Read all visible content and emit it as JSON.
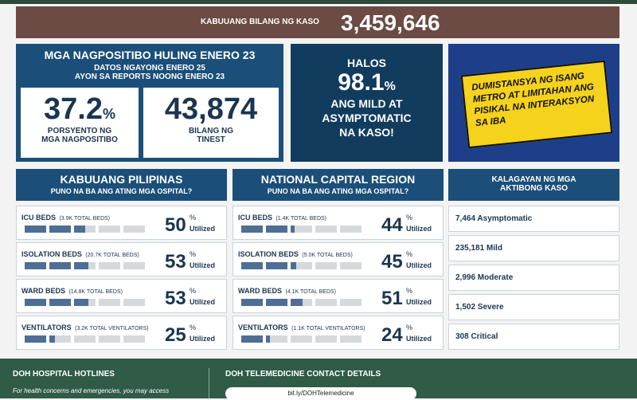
{
  "top_banner": {
    "label": "KABUUANG BILANG NG KASO",
    "value": "3,459,646"
  },
  "positivity": {
    "title": "MGA NAGPOSITIBO HULING ENERO 23",
    "subtitle_1": "DATOS NGAYONG ENERO 25",
    "subtitle_2": "AYON SA REPORTS NOONG ENERO 23",
    "rate": {
      "value": 37.2,
      "unit": "%",
      "label": "PORSYENTO NG MGA NAGPOSITIBO"
    },
    "tested": {
      "value": "43,874",
      "label": "BILANG NG TINEST"
    }
  },
  "mild": {
    "pre": "HALOS",
    "value": 98.1,
    "unit": "%",
    "text": "ANG MILD AT ASYMPTOMATIC NA KASO!"
  },
  "poster": {
    "text": "DUMISTANSYA NG ISANG METRO AT LIMITAHAN ANG PISIKAL NA INTERAKSYON SA IBA"
  },
  "unit": "%",
  "status": "Utilized",
  "regions": [
    {
      "title": "KABUUANG PILIPINAS",
      "subtitle": "PUNO NA BA ANG ATING MGA OSPITAL?",
      "rows": [
        {
          "label": "ICU BEDS",
          "note": "(3.9K TOTAL BEDS)",
          "percent": 50
        },
        {
          "label": "ISOLATION BEDS",
          "note": "(20.7K TOTAL BEDS)",
          "percent": 53
        },
        {
          "label": "WARD BEDS",
          "note": "(14.8K TOTAL BEDS)",
          "percent": 53
        },
        {
          "label": "VENTILATORS",
          "note": "(3.2K TOTAL VENTILATORS)",
          "percent": 25
        }
      ]
    },
    {
      "title": "NATIONAL CAPITAL REGION",
      "subtitle": "PUNO NA BA ANG ATING MGA OSPITAL?",
      "rows": [
        {
          "label": "ICU BEDS",
          "note": "(1.4K TOTAL BEDS)",
          "percent": 44
        },
        {
          "label": "ISOLATION BEDS",
          "note": "(5.0K TOTAL BEDS)",
          "percent": 45
        },
        {
          "label": "WARD BEDS",
          "note": "(4.1K TOTAL BEDS)",
          "percent": 51
        },
        {
          "label": "VENTILATORS",
          "note": "(1.1K TOTAL VENTILATORS)",
          "percent": 24
        }
      ]
    }
  ],
  "active_cases": {
    "title": "KALAGAYAN NG MGA AKTIBONG KASO",
    "items": [
      "7,464 Asymptomatic",
      "235,181 Mild",
      "2,996 Moderate",
      "1,502 Severe",
      "308 Critical"
    ]
  },
  "footer": {
    "left_title": "DOH HOSPITAL HOTLINES",
    "left_text": "For health concerns and emergencies, you may access",
    "right_title": "DOH TELEMEDICINE CONTACT DETAILS",
    "link": "bit.ly/DOHTelemedicine"
  }
}
